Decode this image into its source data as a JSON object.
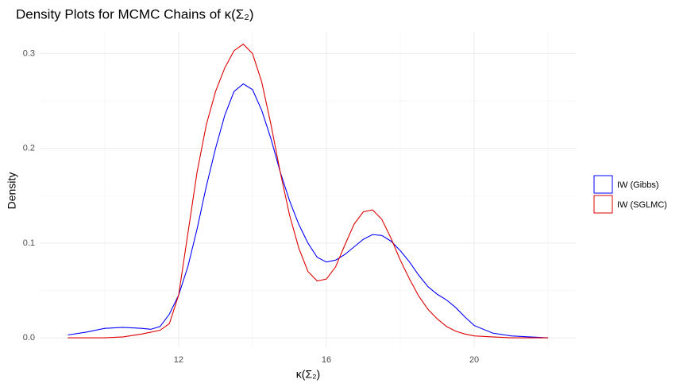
{
  "chart_data": {
    "type": "line",
    "title": "Density Plots for MCMC Chains of κ(Σ₂)",
    "x_label": "κ(Σ₂)",
    "y_label": "Density",
    "x": [
      9,
      9.5,
      10,
      10.5,
      11,
      11.25,
      11.5,
      11.75,
      12,
      12.25,
      12.5,
      12.75,
      13,
      13.25,
      13.5,
      13.75,
      14,
      14.25,
      14.5,
      14.75,
      15,
      15.25,
      15.5,
      15.75,
      16,
      16.25,
      16.5,
      16.75,
      17,
      17.25,
      17.5,
      17.75,
      18,
      18.25,
      18.5,
      18.75,
      19,
      19.25,
      19.5,
      19.75,
      20,
      20.5,
      21,
      21.5,
      22
    ],
    "series": [
      {
        "name": "IW (Gibbs)",
        "color": "#0000ff",
        "values": [
          0.003,
          0.006,
          0.01,
          0.011,
          0.01,
          0.009,
          0.012,
          0.025,
          0.045,
          0.075,
          0.115,
          0.16,
          0.2,
          0.235,
          0.26,
          0.268,
          0.262,
          0.24,
          0.21,
          0.175,
          0.145,
          0.12,
          0.1,
          0.085,
          0.08,
          0.082,
          0.088,
          0.096,
          0.104,
          0.109,
          0.108,
          0.102,
          0.092,
          0.08,
          0.066,
          0.054,
          0.046,
          0.04,
          0.032,
          0.022,
          0.013,
          0.005,
          0.002,
          0.001,
          0
        ]
      },
      {
        "name": "IW (SGLMC)",
        "color": "#dd0000",
        "values": [
          0,
          0,
          0,
          0.001,
          0.004,
          0.006,
          0.008,
          0.015,
          0.045,
          0.11,
          0.175,
          0.225,
          0.26,
          0.285,
          0.303,
          0.31,
          0.3,
          0.27,
          0.225,
          0.175,
          0.13,
          0.095,
          0.07,
          0.06,
          0.062,
          0.075,
          0.098,
          0.12,
          0.133,
          0.135,
          0.125,
          0.105,
          0.082,
          0.062,
          0.044,
          0.03,
          0.02,
          0.012,
          0.007,
          0.004,
          0.002,
          0.001,
          0,
          0,
          0
        ]
      }
    ],
    "xlim": [
      8.24,
      22.75
    ],
    "ylim": [
      -0.01,
      0.323
    ],
    "xticks": [
      12,
      16,
      20
    ],
    "yticks": [
      {
        "value": 0,
        "label": "0.0"
      },
      0.1,
      0.2,
      0.3
    ],
    "x_minor_ticks": [
      10,
      14,
      18,
      22
    ],
    "y_minor_ticks": [
      0.05,
      0.15,
      0.25
    ],
    "grid": true,
    "legend": "right"
  }
}
